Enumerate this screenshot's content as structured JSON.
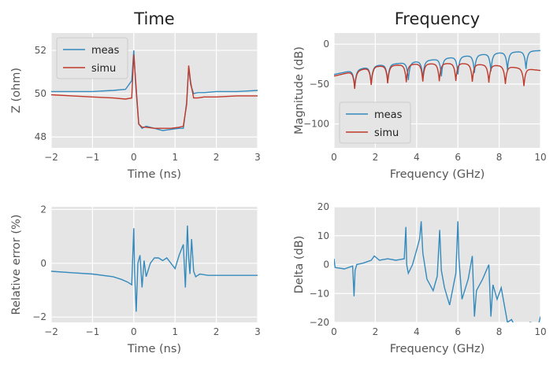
{
  "colors": {
    "meas": "#348abd",
    "simu": "#c0392b",
    "axes_bg": "#e5e5e5",
    "grid": "#ffffff"
  },
  "chart_data": [
    {
      "type": "line",
      "title": "Time",
      "xlabel": "Time (ns)",
      "ylabel": "Z (ohm)",
      "xlim": [
        -2,
        3
      ],
      "ylim": [
        47.5,
        52.8
      ],
      "xticks": [
        -2,
        -1,
        0,
        1,
        2,
        3
      ],
      "xticklabels": [
        "−2",
        "−1",
        "0",
        "1",
        "2",
        "3"
      ],
      "yticks": [
        48,
        50,
        52
      ],
      "yticklabels": [
        "48",
        "50",
        "52"
      ],
      "grid": true,
      "legend": "upper-left",
      "series": [
        {
          "name": "meas",
          "color": "#348abd",
          "x": [
            -2,
            -1.5,
            -1,
            -0.5,
            -0.2,
            -0.05,
            0,
            0.05,
            0.12,
            0.2,
            0.3,
            0.5,
            0.7,
            0.9,
            1.1,
            1.2,
            1.28,
            1.33,
            1.38,
            1.45,
            1.55,
            1.7,
            2,
            2.5,
            3
          ],
          "y": [
            50.1,
            50.1,
            50.1,
            50.15,
            50.2,
            50.6,
            52.0,
            50.3,
            48.6,
            48.4,
            48.5,
            48.4,
            48.3,
            48.35,
            48.4,
            48.4,
            49.6,
            51.2,
            50.4,
            50.0,
            50.05,
            50.05,
            50.1,
            50.1,
            50.15
          ]
        },
        {
          "name": "simu",
          "color": "#c0392b",
          "x": [
            -2,
            -1.5,
            -1,
            -0.5,
            -0.2,
            -0.05,
            0,
            0.05,
            0.12,
            0.2,
            0.3,
            0.5,
            0.7,
            0.9,
            1.1,
            1.2,
            1.28,
            1.33,
            1.38,
            1.45,
            1.55,
            1.7,
            2,
            2.5,
            3
          ],
          "y": [
            49.95,
            49.9,
            49.85,
            49.8,
            49.75,
            49.8,
            51.8,
            50.5,
            48.6,
            48.45,
            48.45,
            48.4,
            48.4,
            48.4,
            48.45,
            48.5,
            49.5,
            51.3,
            50.5,
            49.8,
            49.8,
            49.85,
            49.85,
            49.9,
            49.9
          ]
        }
      ]
    },
    {
      "type": "line",
      "title": "Frequency",
      "xlabel": "Frequency (GHz)",
      "ylabel": "Magnitude (dB)",
      "xlim": [
        0,
        10
      ],
      "ylim": [
        -130,
        14
      ],
      "xticks": [
        0,
        2,
        4,
        6,
        8,
        10
      ],
      "xticklabels": [
        "0",
        "2",
        "4",
        "6",
        "8",
        "10"
      ],
      "yticks": [
        0,
        -50,
        -100
      ],
      "yticklabels": [
        "0",
        "−50",
        "−100"
      ],
      "grid": true,
      "legend": "lower-left",
      "series": [
        {
          "name": "meas",
          "color": "#348abd",
          "dips": [
            1.0,
            1.8,
            2.6,
            3.6,
            4.3,
            5.2,
            6.0,
            6.8,
            7.6,
            8.4,
            9.3
          ],
          "envelope": [
            [
              0,
              -38
            ],
            [
              2,
              -27
            ],
            [
              4,
              -22
            ],
            [
              6,
              -16
            ],
            [
              8,
              -11
            ],
            [
              10,
              -8
            ]
          ]
        },
        {
          "name": "simu",
          "color": "#c0392b",
          "dips": [
            1.0,
            1.8,
            2.6,
            3.5,
            4.3,
            5.1,
            5.9,
            6.7,
            7.5,
            8.3,
            9.2
          ],
          "envelope": [
            [
              0,
              -40
            ],
            [
              2,
              -28
            ],
            [
              4,
              -25
            ],
            [
              6,
              -24
            ],
            [
              8,
              -27
            ],
            [
              10,
              -33
            ]
          ]
        }
      ]
    },
    {
      "type": "line",
      "xlabel": "Time (ns)",
      "ylabel": "Relative error (%)",
      "xlim": [
        -2,
        3
      ],
      "ylim": [
        -2.2,
        2.1
      ],
      "xticks": [
        -2,
        -1,
        0,
        1,
        2,
        3
      ],
      "xticklabels": [
        "−2",
        "−1",
        "0",
        "1",
        "2",
        "3"
      ],
      "yticks": [
        2,
        0,
        -2
      ],
      "yticklabels": [
        "2",
        "0",
        "−2"
      ],
      "grid": true,
      "series": [
        {
          "color": "#348abd",
          "x": [
            -2,
            -1.5,
            -1,
            -0.5,
            -0.3,
            -0.15,
            -0.05,
            0,
            0.02,
            0.06,
            0.1,
            0.15,
            0.2,
            0.25,
            0.3,
            0.4,
            0.5,
            0.6,
            0.7,
            0.8,
            0.9,
            1.0,
            1.1,
            1.2,
            1.25,
            1.3,
            1.33,
            1.36,
            1.4,
            1.45,
            1.5,
            1.6,
            1.8,
            2,
            2.5,
            3
          ],
          "y": [
            -0.3,
            -0.35,
            -0.4,
            -0.5,
            -0.6,
            -0.7,
            -0.8,
            1.3,
            -0.3,
            -1.8,
            0.0,
            0.3,
            -0.9,
            0.1,
            -0.5,
            0.0,
            0.2,
            0.2,
            0.1,
            0.2,
            0.0,
            -0.2,
            0.3,
            0.7,
            -0.9,
            1.4,
            0.2,
            -0.4,
            0.9,
            -0.3,
            -0.5,
            -0.4,
            -0.45,
            -0.45,
            -0.45,
            -0.45
          ]
        }
      ]
    },
    {
      "type": "line",
      "xlabel": "Frequency (GHz)",
      "ylabel": "Delta (dB)",
      "xlim": [
        0,
        10
      ],
      "ylim": [
        -20,
        20
      ],
      "xticks": [
        0,
        2,
        4,
        6,
        8,
        10
      ],
      "xticklabels": [
        "0",
        "2",
        "4",
        "6",
        "8",
        "10"
      ],
      "yticks": [
        20,
        10,
        0,
        -10,
        -20
      ],
      "yticklabels": [
        "20",
        "10",
        "0",
        "−10",
        "−20"
      ],
      "grid": true,
      "series": [
        {
          "color": "#348abd",
          "x": [
            0,
            0.05,
            0.5,
            0.9,
            0.97,
            1.02,
            1.1,
            1.4,
            1.8,
            1.95,
            2.2,
            2.6,
            3.0,
            3.4,
            3.48,
            3.52,
            3.6,
            3.8,
            4.0,
            4.15,
            4.22,
            4.3,
            4.5,
            4.8,
            5.0,
            5.12,
            5.2,
            5.35,
            5.6,
            5.9,
            6.0,
            6.05,
            6.2,
            6.5,
            6.7,
            6.8,
            6.9,
            7.2,
            7.5,
            7.6,
            7.7,
            7.9,
            8.1,
            8.4,
            8.6,
            8.8,
            9.0,
            9.2,
            9.5,
            9.9,
            10
          ],
          "y": [
            2,
            -1,
            -1.5,
            -0.5,
            -11,
            -2,
            0,
            0.5,
            1.5,
            3,
            1.5,
            2,
            1.5,
            2,
            13,
            0,
            -3,
            0,
            5,
            9,
            15,
            4,
            -5,
            -9,
            -4,
            12,
            -2,
            -8,
            -14,
            -3,
            15,
            2,
            -12,
            -5,
            3,
            -18,
            -9,
            -5,
            0,
            -18,
            -7,
            -12,
            -8,
            -20,
            -19,
            -22,
            -21,
            -23,
            -20,
            -21,
            -18
          ]
        }
      ]
    }
  ]
}
